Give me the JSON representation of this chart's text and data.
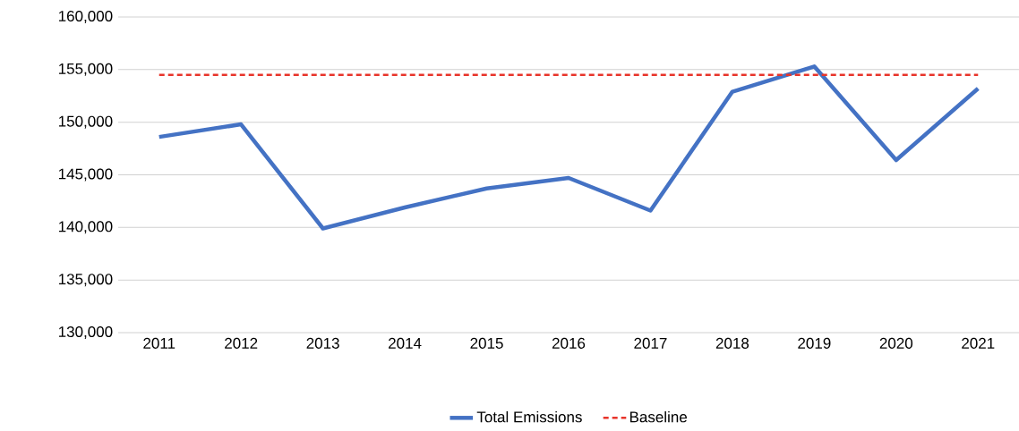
{
  "chart_data": {
    "type": "line",
    "categories": [
      "2011",
      "2012",
      "2013",
      "2014",
      "2015",
      "2016",
      "2017",
      "2018",
      "2019",
      "2020",
      "2021"
    ],
    "series": [
      {
        "name": "Total Emissions",
        "color": "#4472c4",
        "values": [
          148600,
          149800,
          139900,
          141900,
          143700,
          144700,
          141600,
          152900,
          155300,
          146400,
          153200
        ]
      }
    ],
    "ref_lines": [
      {
        "axis": "y",
        "value": 154500,
        "label": "Baseline",
        "color": "#e8342a",
        "line_style": "dashed"
      }
    ],
    "ylim": [
      130000,
      160000
    ],
    "yticks": [
      {
        "value": 130000,
        "label": "130,000"
      },
      {
        "value": 135000,
        "label": "135,000"
      },
      {
        "value": 140000,
        "label": "140,000"
      },
      {
        "value": 145000,
        "label": "145,000"
      },
      {
        "value": 150000,
        "label": "150,000"
      },
      {
        "value": 155000,
        "label": "155,000"
      },
      {
        "value": 160000,
        "label": "160,000"
      }
    ],
    "grid": "y",
    "legend": "bottom",
    "marker": "none",
    "line_style": "solid"
  }
}
